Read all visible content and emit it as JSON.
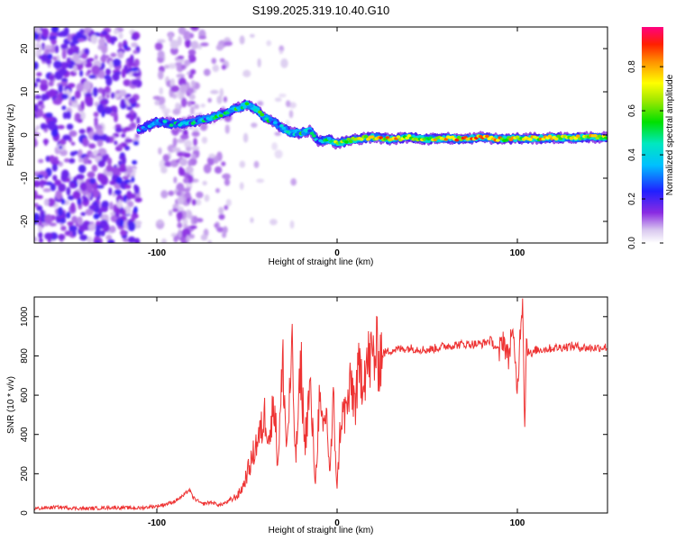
{
  "chart_data": [
    {
      "type": "heatmap",
      "title": "S199.2025.319.10.40.G10",
      "xlabel": "Height of straight line (km)",
      "ylabel": "Frequency (Hz)",
      "xlim": [
        -168,
        150
      ],
      "ylim": [
        -25,
        25
      ],
      "xticks": [
        -100,
        0,
        100
      ],
      "yticks": [
        -20,
        -10,
        0,
        10,
        20
      ],
      "colorbar": {
        "label": "Normalized spectral amplitude",
        "range": [
          0,
          0.98
        ],
        "ticks": [
          "0.0",
          "0.2",
          "0.4",
          "0.6",
          "0.8"
        ],
        "tick_values": [
          0,
          0.2,
          0.4,
          0.6,
          0.8
        ]
      },
      "ridge": {
        "description": "dominant frequency track",
        "x": [
          -110,
          -100,
          -90,
          -80,
          -70,
          -60,
          -50,
          -45,
          -40,
          -35,
          -30,
          -25,
          -20,
          -15,
          -10,
          -5,
          0,
          10,
          20,
          30,
          40,
          50,
          60,
          70,
          80,
          90,
          100,
          110,
          120,
          130,
          140,
          150
        ],
        "y": [
          1,
          3,
          2.5,
          3,
          4,
          5.5,
          7,
          6,
          4,
          3,
          1.5,
          0.5,
          0.5,
          1,
          -1.5,
          -1,
          -2,
          -1,
          -0.5,
          -1,
          -0.5,
          -1,
          -0.7,
          -1,
          -0.5,
          -1,
          -0.8,
          -0.8,
          -0.6,
          -0.7,
          -0.5,
          -0.6
        ],
        "amplitude": [
          0.2,
          0.3,
          0.28,
          0.3,
          0.32,
          0.35,
          0.38,
          0.4,
          0.35,
          0.3,
          0.3,
          0.32,
          0.4,
          0.35,
          0.2,
          0.35,
          0.5,
          0.6,
          0.65,
          0.7,
          0.62,
          0.6,
          0.65,
          0.7,
          0.7,
          0.65,
          0.6,
          0.68,
          0.65,
          0.62,
          0.6,
          0.6
        ]
      }
    },
    {
      "type": "line",
      "xlabel": "Height of straight line (km)",
      "ylabel": "SNR (10 * v/v)",
      "xlim": [
        -168,
        150
      ],
      "ylim": [
        0,
        1100
      ],
      "xticks": [
        -100,
        0,
        100
      ],
      "yticks": [
        0,
        200,
        400,
        600,
        800,
        1000
      ],
      "series": [
        {
          "name": "SNR",
          "color": "#ee3333",
          "x": [
            -168,
            -155,
            -140,
            -125,
            -110,
            -100,
            -95,
            -90,
            -85,
            -82,
            -80,
            -75,
            -70,
            -65,
            -60,
            -55,
            -52,
            -50,
            -47,
            -45,
            -42,
            -40,
            -37,
            -35,
            -33,
            -30,
            -28,
            -25,
            -23,
            -20,
            -18,
            -15,
            -12,
            -10,
            -8,
            -6,
            -4,
            -2,
            0,
            2,
            5,
            8,
            10,
            12,
            15,
            20,
            25,
            30,
            40,
            50,
            60,
            70,
            80,
            85,
            90,
            92,
            95,
            97,
            100,
            102,
            103,
            104,
            105,
            108,
            110,
            120,
            130,
            140,
            150
          ],
          "y": [
            22,
            30,
            22,
            28,
            25,
            35,
            45,
            60,
            90,
            120,
            80,
            45,
            55,
            40,
            60,
            90,
            140,
            200,
            280,
            350,
            420,
            500,
            380,
            620,
            250,
            760,
            320,
            800,
            260,
            760,
            350,
            640,
            150,
            560,
            400,
            520,
            200,
            560,
            120,
            480,
            520,
            650,
            560,
            700,
            740,
            800,
            810,
            830,
            840,
            830,
            850,
            860,
            860,
            880,
            820,
            900,
            780,
            950,
            620,
            1000,
            1100,
            440,
            860,
            800,
            830,
            840,
            850,
            840,
            845
          ]
        }
      ]
    }
  ]
}
